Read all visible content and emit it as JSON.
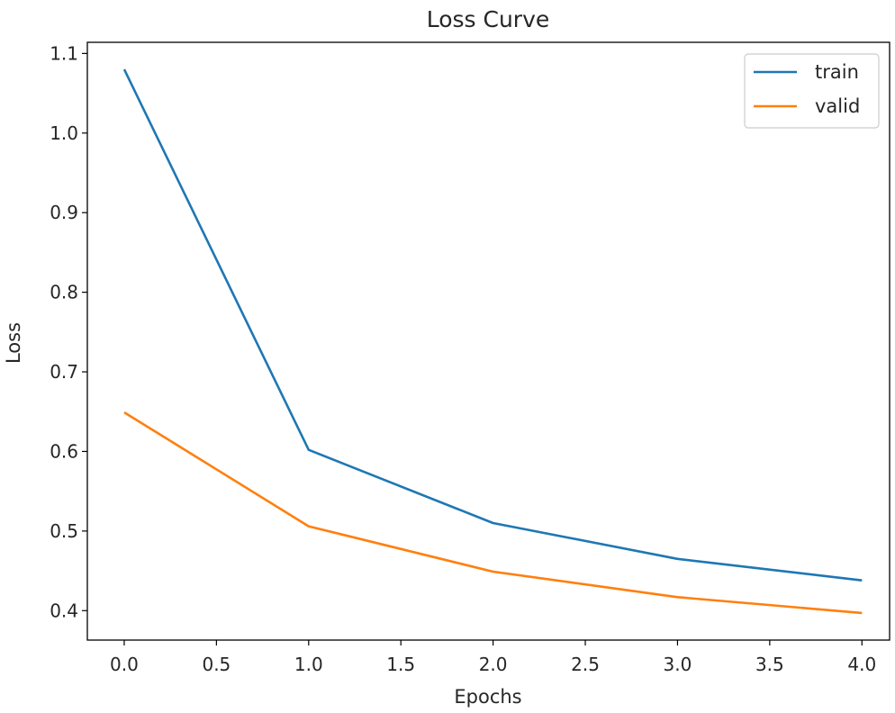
{
  "chart_data": {
    "type": "line",
    "title": "Loss Curve",
    "xlabel": "Epochs",
    "ylabel": "Loss",
    "x": [
      0,
      1,
      2,
      3,
      4
    ],
    "series": [
      {
        "name": "train",
        "values": [
          1.08,
          0.602,
          0.51,
          0.465,
          0.438
        ],
        "color": "#1f77b4"
      },
      {
        "name": "valid",
        "values": [
          0.649,
          0.506,
          0.449,
          0.417,
          0.397
        ],
        "color": "#ff7f0e"
      }
    ],
    "xlim": [
      -0.2,
      4.15
    ],
    "ylim": [
      0.363,
      1.114
    ],
    "xticks": [
      "0.0",
      "0.5",
      "1.0",
      "1.5",
      "2.0",
      "2.5",
      "3.0",
      "3.5",
      "4.0"
    ],
    "yticks": [
      "0.4",
      "0.5",
      "0.6",
      "0.7",
      "0.8",
      "0.9",
      "1.0",
      "1.1"
    ],
    "grid": false,
    "legend_position": "top-right"
  }
}
